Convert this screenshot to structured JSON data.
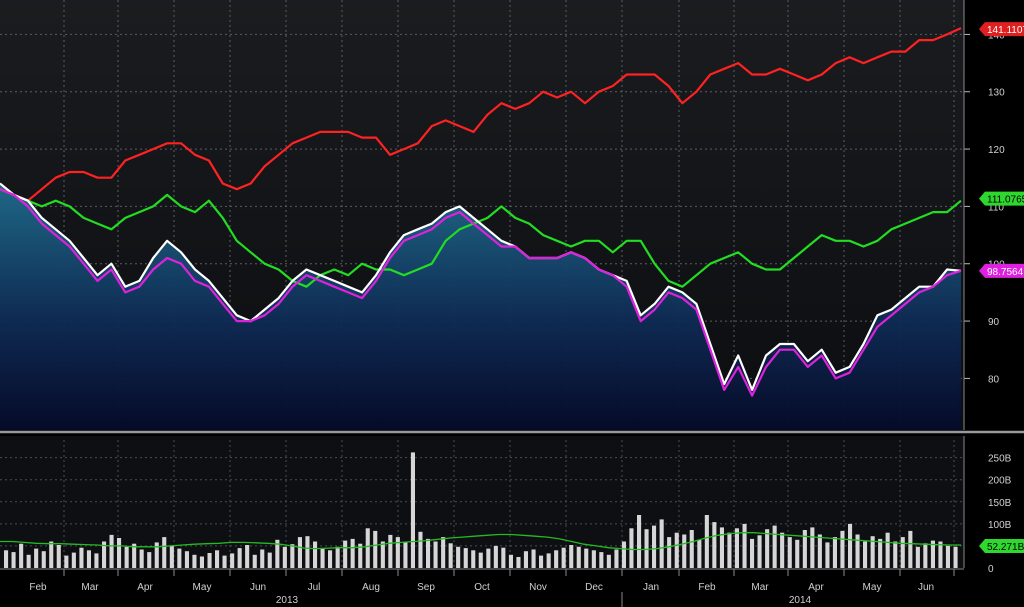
{
  "chart_data": [
    {
      "type": "line",
      "panel": "price",
      "y_ticks": [
        80,
        90,
        100,
        110,
        120,
        130,
        140
      ],
      "ylim": [
        71,
        146
      ],
      "grid": true,
      "area_fill_series": "white",
      "series": [
        {
          "color": "#ff2222",
          "last_label": "141.1107",
          "values": [
            113,
            112,
            111,
            113,
            115,
            116,
            116,
            115,
            115,
            118,
            119,
            120,
            121,
            121,
            119,
            118,
            114,
            113,
            114,
            117,
            119,
            121,
            122,
            123,
            123,
            123,
            122,
            122,
            119,
            120,
            121,
            124,
            125,
            124,
            123,
            126,
            128,
            127,
            128,
            130,
            129,
            130,
            128,
            130,
            131,
            133,
            133,
            133,
            131,
            128,
            130,
            133,
            134,
            135,
            133,
            133,
            134,
            133,
            132,
            133,
            135,
            136,
            135,
            136,
            137,
            137,
            139,
            139,
            140,
            141.1
          ]
        },
        {
          "color": "#22dd22",
          "last_label": "111.0765",
          "values": [
            113,
            112,
            111,
            110,
            111,
            110,
            108,
            107,
            106,
            108,
            109,
            110,
            112,
            110,
            109,
            111,
            108,
            104,
            102,
            100,
            99,
            97,
            96,
            98,
            99,
            98,
            100,
            99,
            99,
            98,
            99,
            100,
            104,
            106,
            107,
            108,
            110,
            108,
            107,
            105,
            104,
            103,
            104,
            104,
            102,
            104,
            104,
            100,
            97,
            96,
            98,
            100,
            101,
            102,
            100,
            99,
            99,
            101,
            103,
            105,
            104,
            104,
            103,
            104,
            106,
            107,
            108,
            109,
            109,
            111
          ]
        },
        {
          "color": "#ffffff",
          "values": [
            114,
            112,
            111,
            108,
            106,
            104,
            101,
            98,
            100,
            96,
            97,
            101,
            104,
            102,
            99,
            97,
            94,
            91,
            90,
            92,
            94,
            97,
            99,
            98,
            97,
            96,
            95,
            98,
            102,
            105,
            106,
            107,
            109,
            110,
            108,
            106,
            104,
            103,
            101,
            101,
            101,
            102,
            101,
            99,
            98,
            97,
            91,
            93,
            96,
            95,
            93,
            86,
            79,
            84,
            78,
            84,
            86,
            86,
            83,
            85,
            81,
            82,
            86,
            91,
            92,
            94,
            96,
            96,
            99,
            98.76
          ]
        },
        {
          "color": "#dd22dd",
          "last_label": "98.7564",
          "values": [
            113,
            112,
            110,
            107,
            105,
            103,
            100,
            97,
            99,
            95,
            96,
            99,
            101,
            100,
            97,
            96,
            93,
            90,
            90,
            91,
            93,
            96,
            98,
            97,
            96,
            95,
            94,
            97,
            101,
            104,
            105,
            106,
            108,
            109,
            107,
            105,
            103,
            103,
            101,
            101,
            101,
            102,
            101,
            99,
            98,
            96,
            90,
            92,
            95,
            94,
            92,
            85,
            78,
            82,
            77,
            82,
            85,
            85,
            82,
            84,
            80,
            81,
            85,
            89,
            91,
            93,
            95,
            96,
            98,
            98.76
          ]
        }
      ]
    },
    {
      "type": "bar",
      "panel": "volume",
      "y_ticks": [
        "0",
        "50B",
        "100B",
        "150B",
        "200B",
        "250B"
      ],
      "ylim": [
        0,
        290
      ],
      "grid": true,
      "values": [
        40,
        36,
        55,
        30,
        44,
        38,
        60,
        52,
        28,
        35,
        46,
        40,
        33,
        60,
        75,
        68,
        48,
        55,
        42,
        36,
        58,
        70,
        50,
        44,
        38,
        30,
        26,
        34,
        40,
        28,
        33,
        45,
        52,
        30,
        42,
        35,
        64,
        48,
        54,
        70,
        72,
        60,
        44,
        40,
        48,
        62,
        66,
        55,
        90,
        84,
        60,
        75,
        70,
        58,
        262,
        82,
        66,
        60,
        70,
        56,
        48,
        45,
        40,
        35,
        44,
        50,
        46,
        30,
        25,
        38,
        42,
        28,
        33,
        40,
        46,
        52,
        48,
        44,
        40,
        36,
        30,
        42,
        60,
        90,
        120,
        88,
        96,
        110,
        70,
        80,
        76,
        86,
        64,
        120,
        104,
        92,
        80,
        90,
        100,
        66,
        74,
        88,
        96,
        80,
        70,
        64,
        86,
        92,
        76,
        58,
        70,
        84,
        100,
        76,
        60,
        72,
        66,
        80,
        60,
        70,
        84,
        48,
        56,
        62,
        60,
        50,
        48
      ],
      "moving_average": [
        60,
        60,
        58,
        56,
        55,
        55,
        54,
        53,
        52,
        50,
        50,
        48,
        48,
        48,
        50,
        52,
        54,
        55,
        56,
        58,
        58,
        57,
        56,
        54,
        50,
        45,
        44,
        45,
        46,
        46,
        48,
        52,
        56,
        58,
        60,
        62,
        65,
        68,
        70,
        72,
        74,
        76,
        76,
        74,
        72,
        70,
        66,
        60,
        54,
        50,
        46,
        44,
        42,
        42,
        44,
        48,
        54,
        60,
        68,
        74,
        78,
        80,
        80,
        78,
        76,
        74,
        72,
        70,
        68,
        66,
        64,
        62,
        60,
        58,
        56,
        55,
        54,
        53,
        52,
        52
      ],
      "last_label": "52.271B"
    }
  ],
  "x_axis": {
    "months": [
      "Feb",
      "Mar",
      "Apr",
      "May",
      "Jun",
      "Jul",
      "Aug",
      "Sep",
      "Oct",
      "Nov",
      "Dec",
      "Jan",
      "Feb",
      "Mar",
      "Apr",
      "May",
      "Jun"
    ],
    "years": [
      "2013",
      "2014"
    ]
  }
}
